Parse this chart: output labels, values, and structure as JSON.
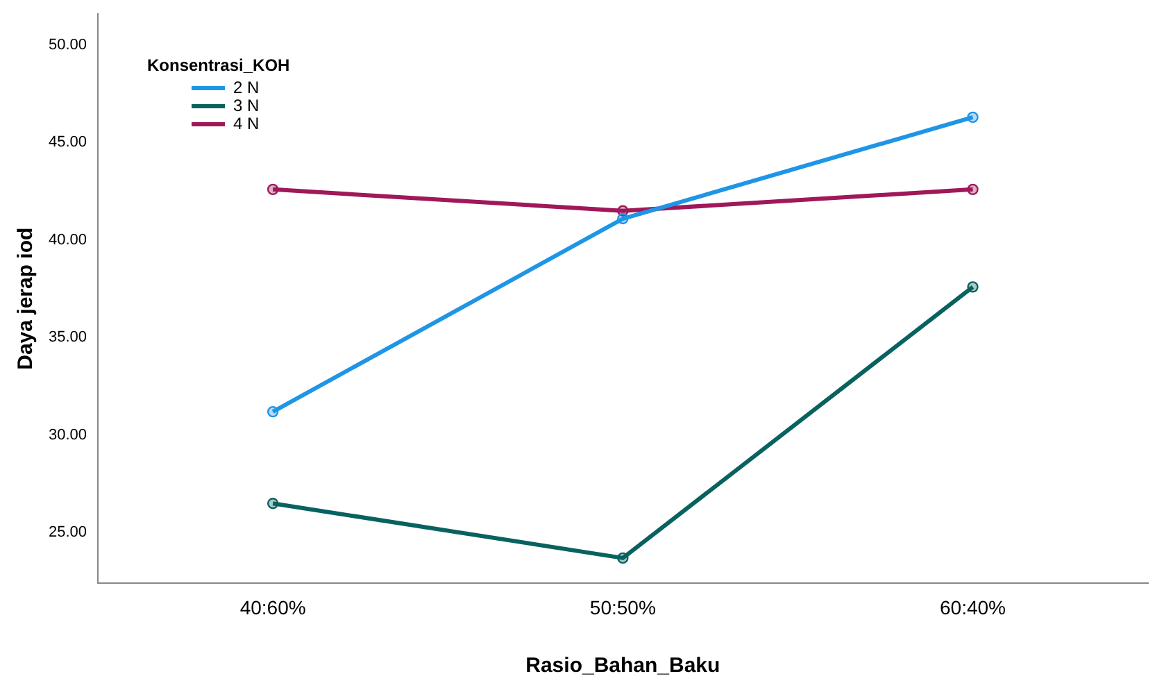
{
  "chart_data": {
    "type": "line",
    "xlabel": "Rasio_Bahan_Baku",
    "ylabel": "Daya jerap iod",
    "legend_title": "Konsentrasi_KOH",
    "categories": [
      "40:60%",
      "50:50%",
      "60:40%"
    ],
    "series": [
      {
        "name": "2 N",
        "color": "#1f95e6",
        "values": [
          31.2,
          41.1,
          46.3
        ]
      },
      {
        "name": "3 N",
        "color": "#08625f",
        "values": [
          26.5,
          23.7,
          37.6
        ]
      },
      {
        "name": "4 N",
        "color": "#a0185a",
        "values": [
          42.6,
          41.5,
          42.6
        ]
      }
    ],
    "ylim": [
      22.4,
      51.6
    ],
    "yticks": [
      {
        "value": 25,
        "label": "25.00"
      },
      {
        "value": 30,
        "label": "30.00"
      },
      {
        "value": 35,
        "label": "35.00"
      },
      {
        "value": 40,
        "label": "40.00"
      },
      {
        "value": 45,
        "label": "45.00"
      },
      {
        "value": 50,
        "label": "50.00"
      }
    ],
    "grid": false,
    "legend": "top left",
    "marker": "circle",
    "line_style": "solid"
  }
}
